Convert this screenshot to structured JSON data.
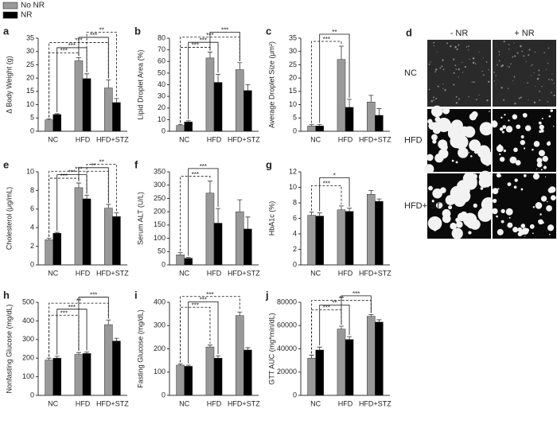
{
  "chart_data": [
    {
      "type": "bar",
      "panel": "a",
      "y_label": "Δ Body Weight (g)",
      "categories": [
        "NC",
        "HFD",
        "HFD+STZ"
      ],
      "series": [
        {
          "name": "No NR",
          "color": "#999999",
          "values": [
            4.3,
            26.5,
            16.3
          ],
          "errors": [
            0.3,
            1.2,
            3
          ]
        },
        {
          "name": "NR",
          "color": "#000000",
          "values": [
            6.3,
            19.8,
            10.8
          ],
          "errors": [
            0.3,
            1.8,
            1.5
          ]
        }
      ],
      "ylim": [
        0,
        35
      ],
      "yticks": [
        0,
        5,
        10,
        15,
        20,
        25,
        30,
        35
      ],
      "annotations": [
        "***",
        "***",
        "***",
        "***",
        "**"
      ]
    },
    {
      "type": "bar",
      "panel": "b",
      "y_label": "Lipid Droplet Area (%)",
      "categories": [
        "NC",
        "HFD",
        "HFD+STZ"
      ],
      "series": [
        {
          "color": "#999999",
          "values": [
            5,
            63,
            53
          ],
          "errors": [
            1,
            5,
            6
          ]
        },
        {
          "color": "#000000",
          "values": [
            8,
            42,
            35
          ],
          "errors": [
            1,
            7,
            5
          ]
        }
      ],
      "ylim": [
        0,
        80
      ],
      "yticks": [
        0,
        10,
        20,
        30,
        40,
        50,
        60,
        70,
        80
      ],
      "annotations": [
        "***",
        "***",
        "***",
        "***"
      ]
    },
    {
      "type": "bar",
      "panel": "c",
      "y_label": "Average Droplet Size (μm²)",
      "categories": [
        "NC",
        "HFD",
        "HFD+STZ"
      ],
      "series": [
        {
          "color": "#999999",
          "values": [
            2,
            27,
            11
          ],
          "errors": [
            0.5,
            5,
            2.5
          ]
        },
        {
          "color": "#000000",
          "values": [
            2,
            9,
            6
          ],
          "errors": [
            0.5,
            3,
            2.5
          ]
        }
      ],
      "ylim": [
        0,
        35
      ],
      "yticks": [
        0,
        5,
        10,
        15,
        20,
        25,
        30,
        35
      ],
      "annotations": [
        "***",
        "**"
      ]
    },
    {
      "type": "bar",
      "panel": "e",
      "y_label": "Cholesterol (μg/mL)",
      "categories": [
        "NC",
        "HFD",
        "HFD+STZ"
      ],
      "series": [
        {
          "color": "#999999",
          "values": [
            2.7,
            8.3,
            6.1
          ],
          "errors": [
            0.15,
            0.5,
            0.4
          ]
        },
        {
          "color": "#000000",
          "values": [
            3.4,
            7.1,
            5.2
          ],
          "errors": [
            0.1,
            0.4,
            0.4
          ]
        }
      ],
      "ylim": [
        0,
        10
      ],
      "yticks": [
        0,
        2,
        4,
        6,
        8,
        10
      ],
      "annotations": [
        "***",
        "***",
        "***",
        "**",
        "**"
      ]
    },
    {
      "type": "bar",
      "panel": "f",
      "y_label": "Serum ALT (U/L)",
      "categories": [
        "NC",
        "HFD",
        "HFD+STZ"
      ],
      "series": [
        {
          "color": "#999999",
          "values": [
            38,
            270,
            200
          ],
          "errors": [
            8,
            45,
            45
          ]
        },
        {
          "color": "#000000",
          "values": [
            25,
            157,
            135
          ],
          "errors": [
            3,
            55,
            45
          ]
        }
      ],
      "ylim": [
        0,
        350
      ],
      "yticks": [
        0,
        50,
        100,
        150,
        200,
        250,
        300,
        350
      ],
      "annotations": [
        "***",
        "***"
      ]
    },
    {
      "type": "bar",
      "panel": "g",
      "y_label": "HbA1c (%)",
      "categories": [
        "NC",
        "HFD",
        "HFD+STZ"
      ],
      "series": [
        {
          "color": "#999999",
          "values": [
            6.4,
            7.1,
            9.1
          ],
          "errors": [
            0.4,
            0.5,
            0.5
          ]
        },
        {
          "color": "#000000",
          "values": [
            6.3,
            6.9,
            8.2
          ],
          "errors": [
            0.4,
            0.4,
            0.3
          ]
        }
      ],
      "ylim": [
        0,
        12
      ],
      "yticks": [
        0,
        2,
        4,
        6,
        8,
        10,
        12
      ],
      "annotations": [
        "***",
        "*"
      ]
    },
    {
      "type": "bar",
      "panel": "h",
      "y_label": "Nonfasting Glucose (mg/dL)",
      "categories": [
        "NC",
        "HFD",
        "HFD+STZ"
      ],
      "series": [
        {
          "color": "#999999",
          "values": [
            190,
            220,
            380
          ],
          "errors": [
            10,
            10,
            25
          ]
        },
        {
          "color": "#000000",
          "values": [
            200,
            225,
            292
          ],
          "errors": [
            10,
            8,
            15
          ]
        }
      ],
      "ylim": [
        0,
        500
      ],
      "yticks": [
        0,
        100,
        200,
        300,
        400,
        500
      ],
      "annotations": [
        "***",
        "***",
        "**",
        "***"
      ]
    },
    {
      "type": "bar",
      "panel": "i",
      "y_label": "Fasting Glucose (mg/dL)",
      "categories": [
        "NC",
        "HFD",
        "HFD+STZ"
      ],
      "series": [
        {
          "color": "#999999",
          "values": [
            130,
            208,
            343
          ],
          "errors": [
            5,
            8,
            15
          ]
        },
        {
          "color": "#000000",
          "values": [
            125,
            160,
            195
          ],
          "errors": [
            5,
            10,
            10
          ]
        }
      ],
      "ylim": [
        0,
        400
      ],
      "yticks": [
        0,
        100,
        200,
        300,
        400
      ],
      "annotations": [
        "***",
        "***",
        "***"
      ]
    },
    {
      "type": "bar",
      "panel": "j",
      "y_label": "GTT AUC (mg*min/dL)",
      "categories": [
        "NC",
        "HFD",
        "HFD+STZ"
      ],
      "series": [
        {
          "color": "#999999",
          "values": [
            32000,
            57000,
            68000
          ],
          "errors": [
            2500,
            2500,
            1500
          ]
        },
        {
          "color": "#000000",
          "values": [
            39000,
            48000,
            63000
          ],
          "errors": [
            2500,
            2500,
            2000
          ]
        }
      ],
      "ylim": [
        0,
        80000
      ],
      "yticks": [
        0,
        20000,
        40000,
        60000,
        80000
      ],
      "annotations": [
        "***",
        "**",
        "**",
        "***"
      ]
    }
  ],
  "microscopy": {
    "panel": "d",
    "columns": [
      "- NR",
      "+ NR"
    ],
    "rows": [
      "NC",
      "HFD",
      "HFD+ STZ"
    ]
  }
}
